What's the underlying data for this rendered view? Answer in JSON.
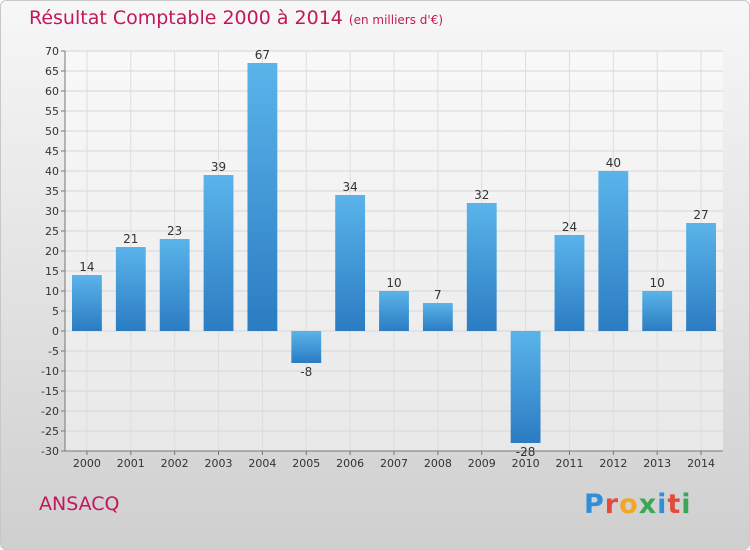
{
  "title": "Résultat Comptable 2000 à 2014",
  "subtitle": "(en milliers d'€)",
  "town": "ANSACQ",
  "logo": "Proxiti",
  "colors": {
    "title": "#c2185b",
    "bar_top": "#5ab4ea",
    "bar_bottom": "#2b7cc2",
    "logo": [
      "#2f8fd8",
      "#e24a3b",
      "#f5a623",
      "#3aa757",
      "#2f8fd8",
      "#e24a3b",
      "#3aa757"
    ]
  },
  "chart_data": {
    "type": "bar",
    "categories": [
      "2000",
      "2001",
      "2002",
      "2003",
      "2004",
      "2005",
      "2006",
      "2007",
      "2008",
      "2009",
      "2010",
      "2011",
      "2012",
      "2013",
      "2014"
    ],
    "values": [
      14,
      21,
      23,
      39,
      67,
      -8,
      34,
      10,
      7,
      32,
      -28,
      24,
      40,
      10,
      27
    ],
    "ylim": [
      -30,
      70
    ],
    "yticks": [
      -30,
      -25,
      -20,
      -15,
      -10,
      -5,
      0,
      5,
      10,
      15,
      20,
      25,
      30,
      35,
      40,
      45,
      50,
      55,
      60,
      65,
      70
    ],
    "grid": true
  }
}
